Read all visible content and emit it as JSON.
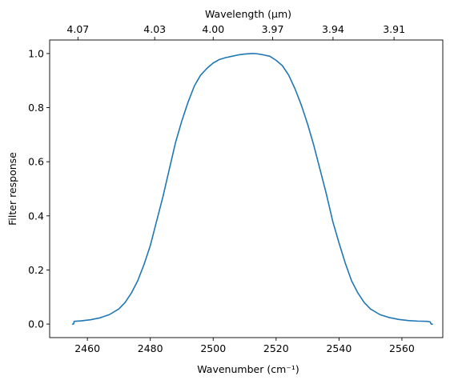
{
  "chart_data": {
    "type": "line",
    "title": "",
    "xlabel": "Wavenumber (cm⁻¹)",
    "ylabel": "Filter response",
    "x2label": "Wavelength (μm)",
    "xlim": [
      2448,
      2573
    ],
    "ylim": [
      -0.05,
      1.05
    ],
    "grid": false,
    "legend": "none",
    "line_color": "#1f77b4",
    "x_ticks": [
      2460,
      2480,
      2500,
      2520,
      2540,
      2560
    ],
    "x_tick_labels": [
      "2460",
      "2480",
      "2500",
      "2520",
      "2540",
      "2560"
    ],
    "y_ticks": [
      0.0,
      0.2,
      0.4,
      0.6,
      0.8,
      1.0
    ],
    "y_tick_labels": [
      "0.0",
      "0.2",
      "0.4",
      "0.6",
      "0.8",
      "1.0"
    ],
    "top_ticks": [
      {
        "label": "4.07",
        "wavenumber": 2457.0
      },
      {
        "label": "4.03",
        "wavenumber": 2481.4
      },
      {
        "label": "4.00",
        "wavenumber": 2500.0
      },
      {
        "label": "3.97",
        "wavenumber": 2518.9
      },
      {
        "label": "3.94",
        "wavenumber": 2538.1
      },
      {
        "label": "3.91",
        "wavenumber": 2557.5
      }
    ],
    "series": [
      {
        "x": [
          2455.3,
          2455.6,
          2455.8,
          2458,
          2461,
          2464,
          2467,
          2470,
          2472,
          2474,
          2476,
          2478,
          2480,
          2482,
          2484,
          2486,
          2488,
          2490,
          2492,
          2494,
          2496,
          2498,
          2500,
          2502,
          2504,
          2506,
          2508,
          2510,
          2512,
          2513,
          2514,
          2516,
          2518,
          2520,
          2522,
          2524,
          2526,
          2528,
          2530,
          2532,
          2534,
          2536,
          2538,
          2540,
          2542,
          2544,
          2546,
          2548,
          2550,
          2553,
          2556,
          2559,
          2562,
          2565,
          2568,
          2569.0,
          2569.3,
          2569.7
        ],
        "y": [
          0.0,
          0.0,
          0.01,
          0.012,
          0.016,
          0.023,
          0.035,
          0.056,
          0.08,
          0.115,
          0.16,
          0.22,
          0.29,
          0.38,
          0.47,
          0.57,
          0.67,
          0.75,
          0.82,
          0.88,
          0.92,
          0.945,
          0.965,
          0.978,
          0.985,
          0.99,
          0.995,
          0.998,
          1.0,
          1.0,
          0.999,
          0.995,
          0.99,
          0.975,
          0.955,
          0.92,
          0.87,
          0.81,
          0.74,
          0.66,
          0.57,
          0.48,
          0.38,
          0.3,
          0.225,
          0.16,
          0.115,
          0.08,
          0.056,
          0.035,
          0.024,
          0.017,
          0.013,
          0.011,
          0.01,
          0.008,
          0.0,
          0.0
        ]
      }
    ]
  }
}
